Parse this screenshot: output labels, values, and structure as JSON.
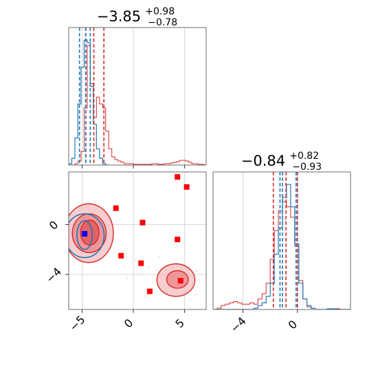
{
  "colors": {
    "red": "#d62728",
    "red_fill": "#f4a3a4",
    "blue": "#1f77b4",
    "marker_red": "#ff0000",
    "marker_blue": "#0000ff",
    "grid": "#cccccc"
  },
  "chart_data": {
    "type": "corner",
    "parameters": [
      "param_0",
      "param_1"
    ],
    "panels": {
      "hist_0": {
        "title_main": "−3.85",
        "title_sup": "+0.98",
        "title_sub": "−0.78",
        "xlim": [
          -6.3,
          7.1
        ],
        "quantiles_red": [
          -4.63,
          -3.85,
          -2.87
        ],
        "quantiles_blue": [
          -5.25,
          -4.65,
          -4.2
        ],
        "series_red": {
          "x": [
            -6.3,
            -6.0,
            -5.7,
            -5.4,
            -5.1,
            -4.8,
            -4.5,
            -4.2,
            -3.9,
            -3.6,
            -3.3,
            -3.0,
            -2.7,
            -2.4,
            -2.1,
            -1.8,
            -1.5,
            -1.2,
            -0.9,
            -0.6,
            -0.3,
            0.0,
            0.3,
            0.6,
            0.9,
            1.2,
            1.5,
            1.8,
            2.1,
            2.4,
            2.7,
            3.0,
            3.3,
            3.6,
            3.9,
            4.2,
            4.5,
            4.8,
            5.1,
            5.4,
            5.7,
            6.0,
            6.3,
            6.6,
            6.9
          ],
          "y": [
            0,
            0,
            0.01,
            0.03,
            0.1,
            0.42,
            0.88,
            0.6,
            0.35,
            0.5,
            0.45,
            0.42,
            0.25,
            0.12,
            0.06,
            0.04,
            0.03,
            0.02,
            0.01,
            0.01,
            0.01,
            0.005,
            0.005,
            0.005,
            0.005,
            0.005,
            0.005,
            0.01,
            0.01,
            0.005,
            0.005,
            0.01,
            0.01,
            0.015,
            0.02,
            0.025,
            0.035,
            0.035,
            0.03,
            0.02,
            0.01,
            0.01,
            0.005,
            0.005,
            0
          ]
        },
        "series_blue": {
          "x": [
            -6.3,
            -6.0,
            -5.7,
            -5.4,
            -5.1,
            -4.8,
            -4.5,
            -4.2,
            -3.9,
            -3.6,
            -3.3,
            -3.0,
            -2.7
          ],
          "y": [
            0.01,
            0.05,
            0.2,
            0.45,
            0.72,
            0.92,
            0.9,
            0.58,
            0.3,
            0.12,
            0.05,
            0.01,
            0
          ]
        }
      },
      "hist_1": {
        "title_main": "−0.84",
        "title_sup": "+0.82",
        "title_sub": "−0.93",
        "xlim": [
          -6.2,
          3.9
        ],
        "x_ticks": [
          -4,
          0
        ],
        "quantiles_red": [
          -1.77,
          -0.84,
          0.0
        ],
        "quantiles_blue": [
          -1.28,
          -1.1,
          -0.1
        ],
        "series_red": {
          "x": [
            -6.2,
            -5.9,
            -5.6,
            -5.3,
            -5.0,
            -4.7,
            -4.4,
            -4.1,
            -3.8,
            -3.5,
            -3.2,
            -2.9,
            -2.6,
            -2.3,
            -2.0,
            -1.7,
            -1.4,
            -1.1,
            -0.8,
            -0.5,
            -0.2,
            0.1,
            0.4,
            0.7,
            1.0,
            1.3,
            1.6,
            1.9,
            2.2,
            2.5,
            2.8,
            3.1,
            3.4,
            3.7
          ],
          "y": [
            0,
            0.01,
            0.03,
            0.04,
            0.05,
            0.06,
            0.05,
            0.04,
            0.04,
            0.05,
            0.04,
            0.08,
            0.12,
            0.2,
            0.38,
            0.6,
            0.75,
            0.82,
            0.78,
            0.7,
            0.48,
            0.22,
            0.08,
            0.02,
            0.01,
            0,
            0,
            0,
            0,
            0.005,
            0.005,
            0,
            0,
            0
          ]
        },
        "series_blue": {
          "x": [
            -6.2,
            -5.9,
            -5.6,
            -5.3,
            -5.0,
            -4.7,
            -4.4,
            -4.1,
            -3.8,
            -3.5,
            -3.2,
            -2.9,
            -2.6,
            -2.3,
            -2.0,
            -1.7,
            -1.4,
            -1.1,
            -0.8,
            -0.5,
            -0.2,
            0.1,
            0.4,
            0.7,
            1.0,
            1.3,
            1.6,
            1.9,
            2.2,
            2.5,
            2.8,
            3.1,
            3.4,
            3.7
          ],
          "y": [
            0,
            0,
            0,
            0,
            0,
            0,
            0,
            0,
            0,
            0,
            0.01,
            0.03,
            0.05,
            0.1,
            0.2,
            0.42,
            0.62,
            0.85,
            0.95,
            0.78,
            0.5,
            0.2,
            0.08,
            0.03,
            0.01,
            0,
            0,
            0,
            0.005,
            0.005,
            0,
            0,
            0,
            0
          ]
        }
      },
      "scatter": {
        "xlim": [
          -6.3,
          7.1
        ],
        "ylim": [
          -6.8,
          4.2
        ],
        "x_ticks": [
          -5,
          0,
          5
        ],
        "y_ticks": [
          0,
          -4
        ],
        "contours_red": [
          {
            "level": "outer",
            "cx": -4.35,
            "cy": -0.7,
            "rx": 2.4,
            "ry": 2.35
          },
          {
            "level": "middle",
            "cx": -4.3,
            "cy": -0.7,
            "rx": 1.65,
            "ry": 1.55
          },
          {
            "level": "inner",
            "cx": -4.25,
            "cy": -0.65,
            "rx": 0.9,
            "ry": 1.0
          }
        ],
        "contours_red_secondary": [
          {
            "level": "outer",
            "cx": 4.15,
            "cy": -4.45,
            "rx": 1.85,
            "ry": 1.3
          },
          {
            "level": "inner",
            "cx": 4.3,
            "cy": -4.4,
            "rx": 1.05,
            "ry": 0.7
          }
        ],
        "contours_blue": [
          {
            "level": "outer",
            "cx": -4.75,
            "cy": -0.9,
            "rx": 1.9,
            "ry": 1.75
          },
          {
            "level": "inner",
            "cx": -4.75,
            "cy": -0.85,
            "rx": 0.75,
            "ry": 1.15
          }
        ],
        "markers_red": [
          {
            "x": 4.3,
            "y": 3.8
          },
          {
            "x": 5.2,
            "y": 3.0
          },
          {
            "x": -1.7,
            "y": 1.3
          },
          {
            "x": 0.9,
            "y": 0.15
          },
          {
            "x": 4.3,
            "y": -1.2
          },
          {
            "x": -1.2,
            "y": -2.5
          },
          {
            "x": 0.75,
            "y": -3.1
          },
          {
            "x": 4.6,
            "y": -4.5
          },
          {
            "x": 1.6,
            "y": -5.35
          }
        ],
        "marker_blue": {
          "x": -4.75,
          "y": -0.75
        },
        "scatter_points": [
          {
            "x": 1.5,
            "y": -3.4
          },
          {
            "x": 2.3,
            "y": -3.6
          },
          {
            "x": 1.0,
            "y": -4.0
          },
          {
            "x": 2.8,
            "y": -5.1
          },
          {
            "x": 1.9,
            "y": -4.6
          },
          {
            "x": 3.2,
            "y": -3.3
          },
          {
            "x": 0.7,
            "y": -3.9
          },
          {
            "x": 6.2,
            "y": -3.7
          },
          {
            "x": 6.5,
            "y": -4.6
          },
          {
            "x": 6.0,
            "y": -5.6
          },
          {
            "x": 2.5,
            "y": -2.6
          },
          {
            "x": 3.6,
            "y": -6.0
          },
          {
            "x": 1.2,
            "y": -5.8
          },
          {
            "x": 5.5,
            "y": -6.1
          },
          {
            "x": -0.6,
            "y": -4.3
          },
          {
            "x": 0.2,
            "y": -2.9
          }
        ]
      }
    }
  }
}
